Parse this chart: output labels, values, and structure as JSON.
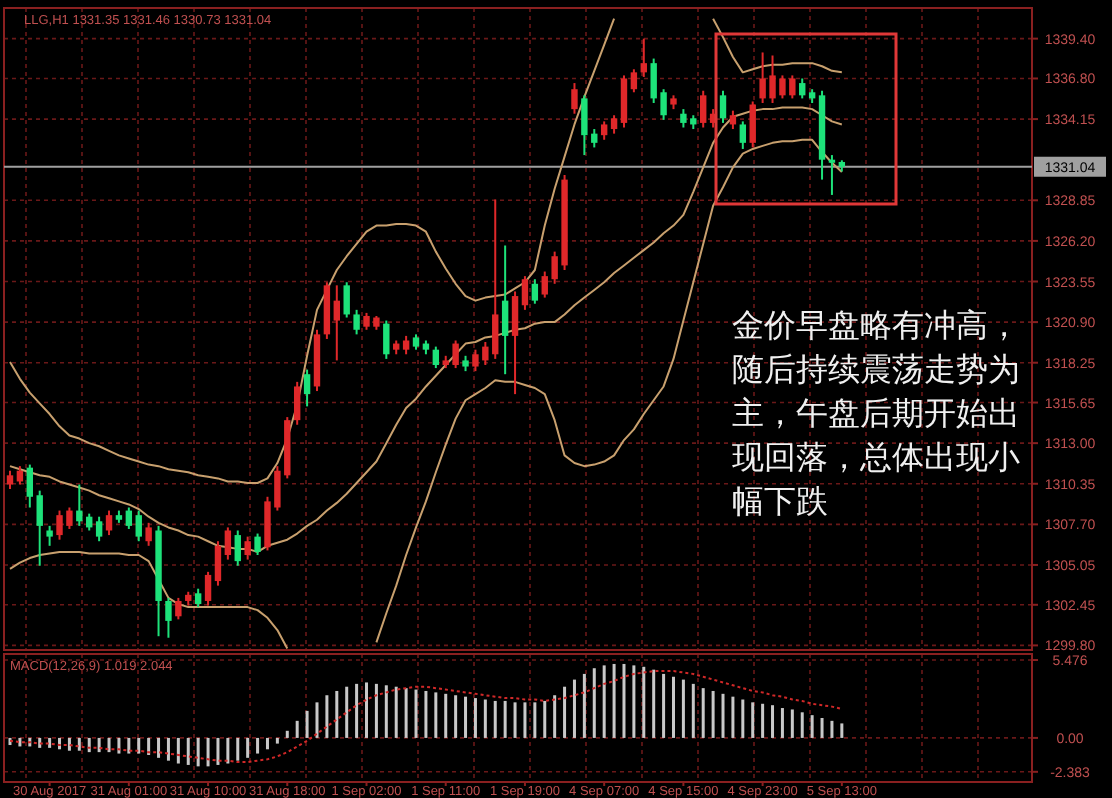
{
  "chart_data": [
    {
      "type": "candlestick",
      "title": "LLG,H1 1331.35 1331.46 1330.73 1331.04",
      "categories": [
        null,
        null,
        null,
        null,
        null,
        null,
        null,
        null,
        null,
        null,
        null,
        null,
        null,
        null,
        null,
        null,
        null,
        null,
        null,
        null,
        null,
        null,
        null,
        null,
        null,
        null,
        null,
        null,
        null,
        null,
        null,
        null,
        null,
        null,
        null,
        null,
        null,
        null,
        null,
        null,
        null,
        null,
        null,
        null,
        null,
        null,
        null,
        null,
        null,
        null,
        null,
        null,
        null,
        null,
        null,
        null,
        null,
        null,
        null,
        null,
        null,
        null,
        null,
        null,
        null,
        null,
        null,
        null,
        null,
        null,
        null,
        null,
        null,
        null,
        null,
        null,
        null,
        null,
        null,
        null,
        null,
        null,
        null,
        null,
        null
      ],
      "ohlc": [
        [
          1310.3,
          1311.2,
          1310.0,
          1310.9
        ],
        [
          1310.5,
          1311.5,
          1310.3,
          1311.2
        ],
        [
          1311.4,
          1311.6,
          1308.8,
          1309.5
        ],
        [
          1309.6,
          1309.9,
          1305.0,
          1307.6
        ],
        [
          1307.3,
          1307.6,
          1306.3,
          1306.9
        ],
        [
          1307.0,
          1308.6,
          1306.7,
          1308.3
        ],
        [
          1307.6,
          1308.8,
          1307.4,
          1308.6
        ],
        [
          1308.6,
          1310.3,
          1307.6,
          1307.9
        ],
        [
          1308.2,
          1308.4,
          1307.3,
          1307.5
        ],
        [
          1307.9,
          1308.2,
          1306.6,
          1306.9
        ],
        [
          1307.3,
          1308.6,
          1307.0,
          1308.3
        ],
        [
          1308.3,
          1308.6,
          1307.8,
          1308.0
        ],
        [
          1308.6,
          1308.8,
          1307.4,
          1307.6
        ],
        [
          1308.3,
          1308.6,
          1306.6,
          1306.9
        ],
        [
          1306.6,
          1307.8,
          1306.3,
          1307.5
        ],
        [
          1307.3,
          1307.6,
          1300.4,
          1302.7
        ],
        [
          1302.7,
          1302.9,
          1300.3,
          1301.4
        ],
        [
          1301.7,
          1302.9,
          1301.5,
          1302.7
        ],
        [
          1302.7,
          1303.3,
          1302.4,
          1303.1
        ],
        [
          1303.2,
          1303.5,
          1302.3,
          1302.5
        ],
        [
          1302.7,
          1304.6,
          1302.4,
          1304.4
        ],
        [
          1304.0,
          1306.6,
          1303.7,
          1306.3
        ],
        [
          1305.7,
          1307.5,
          1305.4,
          1307.3
        ],
        [
          1307.0,
          1307.3,
          1305.0,
          1305.3
        ],
        [
          1305.7,
          1306.9,
          1305.4,
          1306.6
        ],
        [
          1306.9,
          1307.1,
          1305.7,
          1305.9
        ],
        [
          1306.2,
          1309.5,
          1306.0,
          1309.2
        ],
        [
          1308.8,
          1311.5,
          1308.6,
          1311.2
        ],
        [
          1310.9,
          1314.7,
          1310.7,
          1314.5
        ],
        [
          1314.5,
          1317.0,
          1314.2,
          1316.7
        ],
        [
          1317.5,
          1317.8,
          1315.4,
          1316.2
        ],
        [
          1316.7,
          1320.4,
          1316.4,
          1320.1
        ],
        [
          1320.1,
          1323.5,
          1319.8,
          1323.3
        ],
        [
          1321.0,
          1323.3,
          1318.4,
          1322.3
        ],
        [
          1323.3,
          1323.5,
          1321.2,
          1321.4
        ],
        [
          1321.4,
          1321.7,
          1320.1,
          1320.4
        ],
        [
          1320.6,
          1321.5,
          1320.4,
          1321.3
        ],
        [
          1320.6,
          1321.3,
          1320.4,
          1321.2
        ],
        [
          1320.8,
          1321.0,
          1318.5,
          1318.8
        ],
        [
          1319.1,
          1319.7,
          1318.8,
          1319.5
        ],
        [
          1319.1,
          1320.0,
          1318.8,
          1319.7
        ],
        [
          1319.9,
          1320.1,
          1319.1,
          1319.3
        ],
        [
          1319.5,
          1319.7,
          1318.8,
          1319.1
        ],
        [
          1319.1,
          1319.3,
          1317.9,
          1318.1
        ],
        [
          1318.1,
          1318.7,
          1317.9,
          1318.4
        ],
        [
          1318.1,
          1319.7,
          1317.9,
          1319.5
        ],
        [
          1318.4,
          1318.7,
          1317.7,
          1318.0
        ],
        [
          1318.0,
          1319.1,
          1317.7,
          1318.8
        ],
        [
          1318.4,
          1319.6,
          1318.1,
          1319.3
        ],
        [
          1318.8,
          1328.9,
          1318.5,
          1321.4
        ],
        [
          1322.3,
          1325.9,
          1317.5,
          1320.0
        ],
        [
          1320.0,
          1322.9,
          1316.2,
          1322.6
        ],
        [
          1322.0,
          1323.9,
          1321.7,
          1323.7
        ],
        [
          1323.4,
          1323.7,
          1322.1,
          1322.3
        ],
        [
          1322.7,
          1324.2,
          1322.5,
          1323.9
        ],
        [
          1323.7,
          1325.5,
          1323.4,
          1325.2
        ],
        [
          1324.6,
          1330.5,
          1324.3,
          1330.2
        ],
        [
          1334.8,
          1336.5,
          1334.5,
          1336.1
        ],
        [
          1335.5,
          1335.7,
          1331.8,
          1333.1
        ],
        [
          1333.2,
          1333.5,
          1332.3,
          1332.6
        ],
        [
          1333.1,
          1334.0,
          1332.8,
          1333.8
        ],
        [
          1333.5,
          1334.4,
          1333.2,
          1334.2
        ],
        [
          1333.9,
          1337.0,
          1333.6,
          1336.8
        ],
        [
          1336.1,
          1337.4,
          1335.9,
          1337.2
        ],
        [
          1337.2,
          1339.4,
          1336.9,
          1337.8
        ],
        [
          1337.8,
          1338.1,
          1335.2,
          1335.5
        ],
        [
          1335.9,
          1336.1,
          1334.1,
          1334.4
        ],
        [
          1335.1,
          1335.7,
          1334.8,
          1335.5
        ],
        [
          1334.5,
          1334.8,
          1333.6,
          1333.9
        ],
        [
          1334.2,
          1334.4,
          1333.5,
          1333.8
        ],
        [
          1333.9,
          1336.0,
          1333.6,
          1335.7
        ],
        [
          1333.9,
          1334.8,
          1333.6,
          1334.5
        ],
        [
          1335.7,
          1336.0,
          1333.9,
          1334.2
        ],
        [
          1333.8,
          1334.7,
          1333.5,
          1334.4
        ],
        [
          1333.8,
          1334.0,
          1332.2,
          1332.6
        ],
        [
          1332.6,
          1335.3,
          1332.3,
          1335.1
        ],
        [
          1335.5,
          1338.5,
          1335.2,
          1336.8
        ],
        [
          1335.5,
          1338.3,
          1335.2,
          1337.0
        ],
        [
          1335.7,
          1337.0,
          1335.5,
          1336.8
        ],
        [
          1335.7,
          1337.0,
          1335.5,
          1336.8
        ],
        [
          1336.5,
          1336.8,
          1335.5,
          1335.7
        ],
        [
          1335.9,
          1336.1,
          1335.2,
          1335.5
        ],
        [
          1335.7,
          1336.0,
          1330.2,
          1331.5
        ],
        [
          1331.5,
          1331.8,
          1329.2,
          1331.3
        ],
        [
          1331.35,
          1331.46,
          1330.73,
          1331.04
        ]
      ],
      "colors": [
        "#e0282a",
        "#e0282a",
        "#1de27a",
        "#1de27a",
        "#1de27a",
        "#e0282a",
        "#e0282a",
        "#1de27a",
        "#1de27a",
        "#1de27a",
        "#e0282a",
        "#1de27a",
        "#1de27a",
        "#1de27a",
        "#e0282a",
        "#1de27a",
        "#1de27a",
        "#e0282a",
        "#e0282a",
        "#1de27a",
        "#e0282a",
        "#e0282a",
        "#e0282a",
        "#1de27a",
        "#e0282a",
        "#1de27a",
        "#e0282a",
        "#e0282a",
        "#e0282a",
        "#e0282a",
        "#1de27a",
        "#e0282a",
        "#e0282a",
        "#e0282a",
        "#1de27a",
        "#1de27a",
        "#e0282a",
        "#e0282a",
        "#1de27a",
        "#e0282a",
        "#e0282a",
        "#1de27a",
        "#1de27a",
        "#1de27a",
        "#e0282a",
        "#e0282a",
        "#1de27a",
        "#e0282a",
        "#e0282a",
        "#e0282a",
        "#1de27a",
        "#e0282a",
        "#e0282a",
        "#1de27a",
        "#e0282a",
        "#e0282a",
        "#e0282a",
        "#e0282a",
        "#1de27a",
        "#1de27a",
        "#e0282a",
        "#e0282a",
        "#e0282a",
        "#e0282a",
        "#e0282a",
        "#1de27a",
        "#1de27a",
        "#e0282a",
        "#1de27a",
        "#1de27a",
        "#e0282a",
        "#e0282a",
        "#1de27a",
        "#e0282a",
        "#1de27a",
        "#e0282a",
        "#e0282a",
        "#e0282a",
        "#e0282a",
        "#e0282a",
        "#1de27a",
        "#1de27a",
        "#1de27a",
        "#1de27a",
        "#1de27a"
      ],
      "series": [
        {
          "type": "line",
          "color": "#c8a06e",
          "values": [
            1318.3,
            1317.2,
            1316.3,
            1315.6,
            1314.9,
            1314.1,
            1313.5,
            1313.3,
            1313.0,
            1312.8,
            1312.5,
            1312.2,
            1312.0,
            1311.8,
            1311.6,
            1311.5,
            1311.3,
            1311.2,
            1311.1,
            1310.9,
            1310.8,
            1310.7,
            1310.5,
            1310.5,
            1310.4,
            1310.4,
            1310.7,
            1311.7,
            1313.3,
            1315.5,
            1318.7,
            1321.7,
            1323.0,
            1324.3,
            1325.2,
            1326.0,
            1326.8,
            1327.2,
            1327.2,
            1327.3,
            1327.3,
            1327.2,
            1326.8,
            1325.5,
            1324.4,
            1323.4,
            1322.6,
            1322.3,
            1322.5,
            1322.6,
            1322.7,
            1323.1,
            1323.5,
            1324.3,
            1327.2,
            1329.6,
            1331.7,
            1333.8,
            1335.6,
            1337.3,
            1339.0,
            1340.7,
            null,
            null,
            null,
            null,
            null,
            null,
            null,
            null,
            null,
            1340.7,
            1339.5,
            1338.2,
            1337.2,
            1337.4,
            1337.6,
            1337.7,
            1337.7,
            1337.8,
            1337.8,
            1337.8,
            1337.6,
            1337.3,
            1337.2
          ]
        },
        {
          "type": "line",
          "color": "#c8a06e",
          "values": [
            1311.5,
            1311.3,
            1311.1,
            1310.9,
            1310.8,
            1310.5,
            1310.3,
            1310.1,
            1309.9,
            1309.6,
            1309.4,
            1309.2,
            1309.0,
            1308.7,
            1308.2,
            1307.8,
            1307.5,
            1307.3,
            1307.0,
            1306.9,
            1306.6,
            1306.3,
            1306.2,
            1306.1,
            1306.1,
            1305.9,
            1306.3,
            1306.5,
            1306.7,
            1307.1,
            1307.6,
            1308.0,
            1308.6,
            1309.1,
            1309.7,
            1310.4,
            1311.1,
            1311.8,
            1313.0,
            1314.2,
            1315.3,
            1315.9,
            1316.7,
            1317.4,
            1318.1,
            1318.8,
            1319.5,
            1319.6,
            1319.9,
            1320.0,
            1320.2,
            1320.4,
            1320.5,
            1320.8,
            1320.9,
            1320.9,
            1321.4,
            1322.0,
            1322.5,
            1323.0,
            1323.5,
            1324.1,
            1324.6,
            1325.1,
            1325.6,
            1326.1,
            1326.7,
            1327.2,
            1327.9,
            1329.4,
            1331.0,
            1332.6,
            1333.6,
            1334.3,
            1334.5,
            1334.7,
            1334.8,
            1334.8,
            1334.9,
            1334.9,
            1334.9,
            1334.8,
            1334.4,
            1334.0,
            1333.8
          ]
        },
        {
          "type": "line",
          "color": "#c8a06e",
          "values": [
            1304.8,
            1305.2,
            1305.5,
            1305.7,
            1305.8,
            1305.9,
            1305.9,
            1305.9,
            1305.8,
            1305.8,
            1305.8,
            1305.8,
            1305.7,
            1305.7,
            1305.3,
            1304.1,
            1302.9,
            1302.5,
            1302.3,
            1302.3,
            1302.3,
            1302.3,
            1302.3,
            1302.3,
            1302.3,
            1302.1,
            1301.6,
            1300.8,
            1299.6,
            null,
            null,
            null,
            null,
            null,
            null,
            null,
            null,
            1300.0,
            1301.9,
            1303.7,
            1305.7,
            1307.5,
            1309.2,
            1311.1,
            1312.9,
            1314.6,
            1315.8,
            1316.2,
            1316.6,
            1317.1,
            1317.0,
            1317.0,
            1316.8,
            1316.6,
            1316.2,
            1314.5,
            1312.2,
            1311.7,
            1311.5,
            1311.6,
            1311.8,
            1312.2,
            1313.2,
            1313.9,
            1314.9,
            1315.8,
            1316.7,
            1318.5,
            1321.0,
            1323.5,
            1326.0,
            1328.5,
            1329.7,
            1331.0,
            1331.9,
            1332.2,
            1332.4,
            1332.6,
            1332.7,
            1332.7,
            1332.8,
            1332.8,
            1332.0,
            1331.3,
            1330.7
          ]
        }
      ],
      "ylim": [
        1299.5,
        1341.4
      ],
      "yticks": [
        {
          "value": 1339.4,
          "label": "1339.40"
        },
        {
          "value": 1336.8,
          "label": "1336.80"
        },
        {
          "value": 1334.15,
          "label": "1334.15"
        },
        {
          "value": 1328.85,
          "label": "1328.85"
        },
        {
          "value": 1326.2,
          "label": "1326.20"
        },
        {
          "value": 1323.55,
          "label": "1323.55"
        },
        {
          "value": 1320.9,
          "label": "1320.90"
        },
        {
          "value": 1318.25,
          "label": "1318.25"
        },
        {
          "value": 1315.65,
          "label": "1315.65"
        },
        {
          "value": 1313.0,
          "label": "1313.00"
        },
        {
          "value": 1310.35,
          "label": "1310.35"
        },
        {
          "value": 1307.7,
          "label": "1307.70"
        },
        {
          "value": 1305.05,
          "label": "1305.05"
        },
        {
          "value": 1302.45,
          "label": "1302.45"
        },
        {
          "value": 1299.8,
          "label": "1299.80"
        }
      ],
      "tick_labels": "y",
      "grid": true,
      "ref_lines": [
        {
          "axis": "y",
          "value": 1331.04,
          "label": "1331.04",
          "color": "#a0a0a0"
        }
      ],
      "annotations": [
        "金价早盘略有冲高，随后持续震荡走势为主，午盘后期开始出现回落，总体出现小幅下跌"
      ]
    },
    {
      "type": "bar",
      "title": "MACD(12,26,9) 1.019 2.044",
      "categories": [
        null,
        null,
        null,
        null,
        "30 Aug 2017",
        null,
        null,
        null,
        null,
        null,
        null,
        null,
        "31 Aug 01:00",
        null,
        null,
        null,
        null,
        null,
        null,
        null,
        "31 Aug 10:00",
        null,
        null,
        null,
        null,
        null,
        null,
        null,
        "31 Aug 18:00",
        null,
        null,
        null,
        null,
        null,
        null,
        null,
        "1 Sep 02:00",
        null,
        null,
        null,
        null,
        null,
        null,
        null,
        "1 Sep 11:00",
        null,
        null,
        null,
        null,
        null,
        null,
        null,
        "1 Sep 19:00",
        null,
        null,
        null,
        null,
        null,
        null,
        null,
        "4 Sep 07:00",
        null,
        null,
        null,
        null,
        null,
        null,
        null,
        "4 Sep 15:00",
        null,
        null,
        null,
        null,
        null,
        null,
        null,
        "4 Sep 23:00",
        null,
        null,
        null,
        null,
        null,
        null,
        null,
        "5 Sep 13:00"
      ],
      "series": [
        {
          "type": "bar",
          "color": "#c8c8c8",
          "values": [
            -0.5,
            -0.6,
            -0.6,
            -0.7,
            -0.7,
            -0.8,
            -0.9,
            -0.9,
            -1.0,
            -1.0,
            -1.0,
            -1.1,
            -1.1,
            -1.1,
            -1.2,
            -1.4,
            -1.6,
            -1.8,
            -1.9,
            -2.0,
            -2.0,
            -1.9,
            -1.8,
            -1.6,
            -1.4,
            -1.1,
            -0.8,
            -0.4,
            0.5,
            1.2,
            1.9,
            2.5,
            3.0,
            3.3,
            3.6,
            3.8,
            3.9,
            3.8,
            3.7,
            3.6,
            3.5,
            3.4,
            3.3,
            3.2,
            3.1,
            3.0,
            2.9,
            2.8,
            2.7,
            2.6,
            2.6,
            2.5,
            2.5,
            2.5,
            2.6,
            3.0,
            3.6,
            4.1,
            4.5,
            4.9,
            5.1,
            5.2,
            5.2,
            5.1,
            5.0,
            4.8,
            4.5,
            4.3,
            4.1,
            3.8,
            3.5,
            3.3,
            3.1,
            2.9,
            2.7,
            2.5,
            2.4,
            2.3,
            2.1,
            2.0,
            1.8,
            1.6,
            1.4,
            1.2,
            1.019
          ]
        },
        {
          "type": "line",
          "color": "#d02828",
          "values": [
            -0.2,
            -0.3,
            -0.3,
            -0.4,
            -0.4,
            -0.5,
            -0.5,
            -0.6,
            -0.7,
            -0.7,
            -0.8,
            -0.8,
            -0.9,
            -0.9,
            -1.0,
            -1.0,
            -1.1,
            -1.2,
            -1.3,
            -1.4,
            -1.5,
            -1.6,
            -1.6,
            -1.7,
            -1.7,
            -1.6,
            -1.5,
            -1.3,
            -1.0,
            -0.6,
            -0.2,
            0.3,
            0.8,
            1.3,
            1.8,
            2.3,
            2.7,
            3.0,
            3.2,
            3.4,
            3.5,
            3.6,
            3.6,
            3.5,
            3.4,
            3.3,
            3.2,
            3.1,
            3.0,
            2.9,
            2.8,
            2.8,
            2.7,
            2.7,
            2.6,
            2.7,
            2.8,
            3.0,
            3.2,
            3.5,
            3.8,
            4.0,
            4.3,
            4.5,
            4.6,
            4.7,
            4.7,
            4.7,
            4.6,
            4.5,
            4.3,
            4.1,
            3.9,
            3.7,
            3.5,
            3.3,
            3.2,
            3.0,
            2.9,
            2.7,
            2.6,
            2.4,
            2.3,
            2.2,
            2.044
          ]
        }
      ],
      "line_style": "dotted",
      "ylim": [
        -3.1,
        5.9
      ],
      "yticks": [
        {
          "value": 5.476,
          "label": "5.476"
        },
        {
          "value": 0,
          "label": "0.00"
        },
        {
          "value": -2.383,
          "label": "-2.383"
        }
      ],
      "grid": true
    }
  ]
}
